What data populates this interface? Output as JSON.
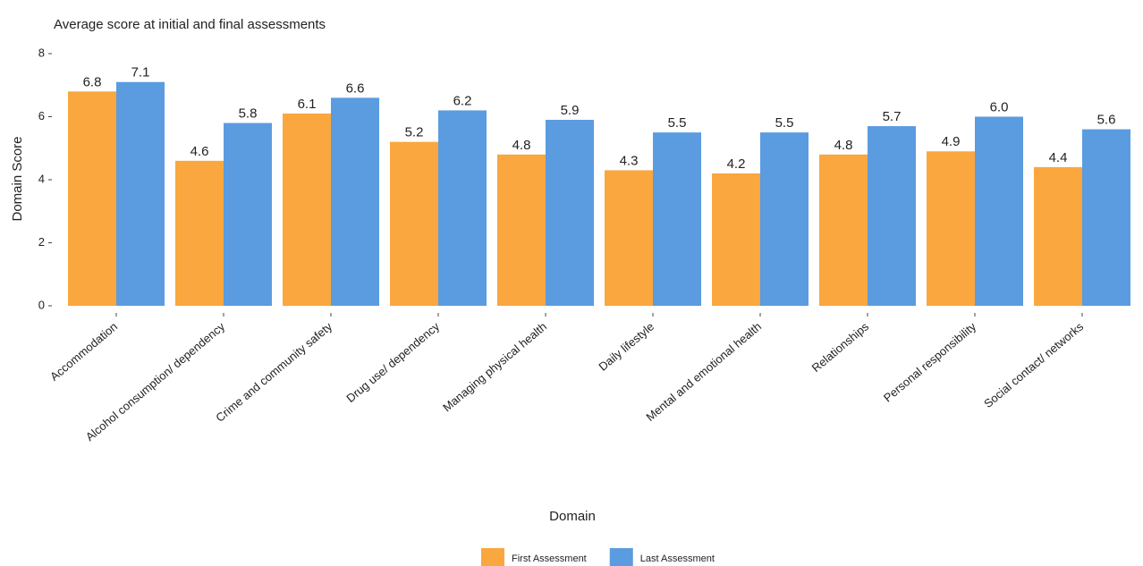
{
  "chart_data": {
    "type": "bar",
    "title": "Average score at initial and final assessments",
    "x_label": "Domain",
    "y_label": "Domain Score",
    "categories": [
      "Accommodation",
      "Alcohol consumption/ dependency",
      "Crime and community safety",
      "Drug use/ dependency",
      "Managing physical health",
      "Daily lifestyle",
      "Mental and emotional health",
      "Relationships",
      "Personal responsibility",
      "Social contact/ networks"
    ],
    "series": [
      {
        "name": "First Assessment",
        "color": "#f9a73e",
        "values": [
          6.8,
          4.6,
          6.1,
          5.2,
          4.8,
          4.3,
          4.2,
          4.8,
          4.9,
          4.4
        ],
        "value_labels": [
          "6.8",
          "4.6",
          "6.1",
          "5.2",
          "4.8",
          "4.3",
          "4.2",
          "4.8",
          "4.9",
          "4.4"
        ]
      },
      {
        "name": "Last Assessment",
        "color": "#5b9be0",
        "values": [
          7.1,
          5.8,
          6.6,
          6.2,
          5.9,
          5.5,
          5.5,
          5.7,
          6.0,
          5.6
        ],
        "value_labels": [
          "7.1",
          "5.8",
          "6.6",
          "6.2",
          "5.9",
          "5.5",
          "5.5",
          "5.7",
          "6.0",
          "5.6"
        ]
      }
    ],
    "ylim": [
      0,
      8
    ],
    "yticks": [
      0,
      2,
      4,
      6,
      8
    ],
    "grid": false,
    "legend": "bottom"
  }
}
